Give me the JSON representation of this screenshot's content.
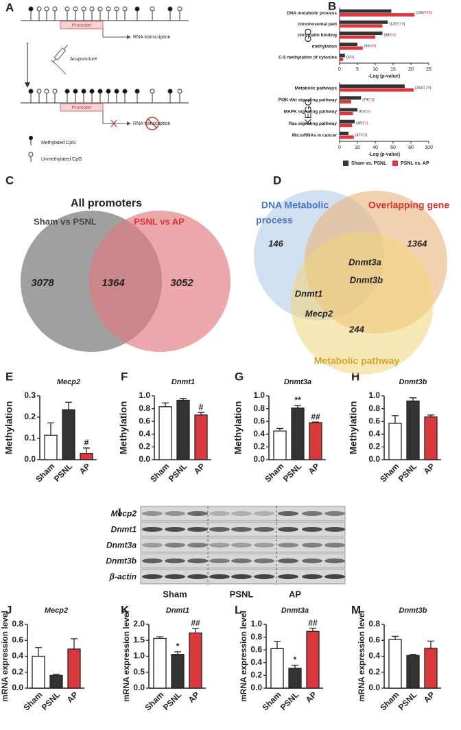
{
  "panel_letters": [
    "A",
    "B",
    "C",
    "D",
    "E",
    "F",
    "G",
    "H",
    "I",
    "J",
    "K",
    "L",
    "M"
  ],
  "diagram_a": {
    "promoter_top": "Promoter",
    "rna_top": "RNA transcription",
    "acupuncture": "Acupuncture",
    "promoter_bottom": "Promoter",
    "rna_bottom": "RNA transcription",
    "legend_methylated": "Methylated CpG",
    "legend_unmethylated": "Unmethylated CpG"
  },
  "venn_c": {
    "title": "All promoters",
    "sets": [
      "Sham vs PSNL",
      "PSNL vs AP"
    ],
    "counts": [
      3078,
      1364,
      3052
    ]
  },
  "venn_d": {
    "sets": [
      [
        "DNA Metabolic",
        "process"
      ],
      "Overlapping gene",
      "Metabolic pathway"
    ],
    "counts": [
      146,
      1364,
      244
    ],
    "genes": [
      "Dnmt3a",
      "Dnmt3b",
      "Dnmt1",
      "Mecp2"
    ]
  },
  "blot_i": {
    "rows": [
      "Mecp2",
      "Dnmt1",
      "Dnmt3a",
      "Dnmt3b",
      "β-actin"
    ],
    "groups": [
      "Sham",
      "PSNL",
      "AP"
    ]
  },
  "chart_data": [
    {
      "type": "hbar",
      "axis_label": "GO",
      "x_label": "-Log (p-value)",
      "categories": [
        "DNA metabolic process",
        "chromosomal part",
        "chromatin binding",
        "methylation",
        "C-5 methylation of cytosine"
      ],
      "series": [
        {
          "name": "Sham vs. PSNL",
          "color": "#333333",
          "values": [
            14.5,
            13.5,
            12,
            5,
            1.5
          ]
        },
        {
          "name": "PSNL vs. AP",
          "color": "#d9393d",
          "values": [
            21,
            12,
            10,
            6.5,
            1
          ]
        }
      ],
      "count_labels": [
        "(128/146)",
        "(126/119)",
        "(88/83)",
        "(46/49)",
        "(3/3)"
      ],
      "xlim": [
        0,
        25
      ],
      "xticks": [
        0,
        5,
        10,
        15,
        20,
        25
      ],
      "legend": false
    },
    {
      "type": "hbar",
      "axis_label": "KEGG",
      "x_label": "-Log (p-value)",
      "categories": [
        "Metabolic pathways",
        "PI3K-Akt signaling pathway",
        "MAPK signaling pathway",
        "Ras signaling pathway",
        "MicroRNAs in cancer"
      ],
      "series": [
        {
          "name": "Sham vs. PSNL",
          "color": "#333333",
          "values": [
            73,
            24,
            20,
            17,
            10
          ]
        },
        {
          "name": "PSNL vs. AP",
          "color": "#d9393d",
          "values": [
            83,
            13,
            15,
            14,
            16
          ]
        }
      ],
      "count_labels": [
        "(244/229)",
        "(74/71)",
        "(61/55)",
        "(46/51)",
        "(47/53)"
      ],
      "xlim": [
        0,
        100
      ],
      "xticks": [
        0,
        20,
        40,
        60,
        80,
        100
      ],
      "legend": true
    },
    {
      "type": "bar",
      "title": "Mecp2",
      "y_label": "Methylation",
      "categories": [
        "Sham",
        "PSNL",
        "AP"
      ],
      "values": [
        0.115,
        0.235,
        0.03
      ],
      "errors": [
        0.058,
        0.035,
        0.025
      ],
      "colors": [
        "#ffffff",
        "#333333",
        "#d9393d"
      ],
      "ylim": [
        0,
        0.3
      ],
      "yticks": [
        {
          "value": 0,
          "label": "0.0"
        },
        0.1,
        0.2,
        0.3
      ],
      "annotations": [
        null,
        null,
        "#"
      ]
    },
    {
      "type": "bar",
      "title": "Dnmt1",
      "y_label": "Methylation",
      "categories": [
        "Sham",
        "PSNL",
        "AP"
      ],
      "values": [
        0.83,
        0.93,
        0.7
      ],
      "errors": [
        0.06,
        0.03,
        0.04
      ],
      "colors": [
        "#ffffff",
        "#333333",
        "#d9393d"
      ],
      "ylim": [
        0,
        1
      ],
      "yticks": [
        {
          "value": 0,
          "label": "0.0"
        },
        0.2,
        0.4,
        0.6,
        0.8,
        {
          "value": 1,
          "label": "1.0"
        }
      ],
      "annotations": [
        null,
        null,
        "#"
      ]
    },
    {
      "type": "bar",
      "title": "Dnmt3a",
      "y_label": "Methylation",
      "categories": [
        "Sham",
        "PSNL",
        "AP"
      ],
      "values": [
        0.45,
        0.81,
        0.58
      ],
      "errors": [
        0.04,
        0.04,
        0.01
      ],
      "colors": [
        "#ffffff",
        "#333333",
        "#d9393d"
      ],
      "ylim": [
        0,
        1
      ],
      "yticks": [
        {
          "value": 0,
          "label": "0.0"
        },
        0.2,
        0.4,
        0.6,
        0.8,
        {
          "value": 1,
          "label": "1.0"
        }
      ],
      "annotations": [
        null,
        "**",
        "##"
      ]
    },
    {
      "type": "bar",
      "title": "Dnmt3b",
      "y_label": "Methylation",
      "categories": [
        "Sham",
        "PSNL",
        "AP"
      ],
      "values": [
        0.57,
        0.92,
        0.67
      ],
      "errors": [
        0.12,
        0.05,
        0.03
      ],
      "colors": [
        "#ffffff",
        "#333333",
        "#d9393d"
      ],
      "ylim": [
        0,
        1
      ],
      "yticks": [
        {
          "value": 0,
          "label": "0.0"
        },
        0.2,
        0.4,
        0.6,
        0.8,
        {
          "value": 1,
          "label": "1.0"
        }
      ],
      "annotations": [
        null,
        null,
        null
      ]
    },
    {
      "type": "bar",
      "title": "Mecp2",
      "y_label": "mRNA expression level",
      "categories": [
        "Sham",
        "PSNL",
        "AP"
      ],
      "values": [
        0.4,
        0.16,
        0.49
      ],
      "errors": [
        0.11,
        0.015,
        0.13
      ],
      "colors": [
        "#ffffff",
        "#333333",
        "#d9393d"
      ],
      "ylim": [
        0,
        0.8
      ],
      "yticks": [
        {
          "value": 0,
          "label": "0.0"
        },
        0.2,
        0.4,
        0.6,
        0.8
      ],
      "annotations": [
        null,
        null,
        null
      ]
    },
    {
      "type": "bar",
      "title": "Dnmt1",
      "y_label": "mRNA expression level",
      "categories": [
        "Sham",
        "PSNL",
        "AP"
      ],
      "values": [
        1.56,
        1.06,
        1.73
      ],
      "errors": [
        0.05,
        0.08,
        0.14
      ],
      "colors": [
        "#ffffff",
        "#333333",
        "#d9393d"
      ],
      "ylim": [
        0,
        2
      ],
      "yticks": [
        {
          "value": 0,
          "label": "0.0"
        },
        0.5,
        {
          "value": 1,
          "label": "1.0"
        },
        1.5,
        {
          "value": 2,
          "label": "2.0"
        }
      ],
      "annotations": [
        null,
        "*",
        "##"
      ]
    },
    {
      "type": "bar",
      "title": "Dnmt3a",
      "y_label": "mRNA expression level",
      "categories": [
        "Sham",
        "PSNL",
        "AP"
      ],
      "values": [
        0.62,
        0.31,
        0.89
      ],
      "errors": [
        0.11,
        0.05,
        0.05
      ],
      "colors": [
        "#ffffff",
        "#333333",
        "#d9393d"
      ],
      "ylim": [
        0,
        1
      ],
      "yticks": [
        {
          "value": 0,
          "label": "0.0"
        },
        0.2,
        0.4,
        0.6,
        0.8,
        {
          "value": 1,
          "label": "1.0"
        }
      ],
      "annotations": [
        null,
        "*",
        "##"
      ]
    },
    {
      "type": "bar",
      "title": "Dnmt3b",
      "y_label": "mRNA expression level",
      "categories": [
        "Sham",
        "PSNL",
        "AP"
      ],
      "values": [
        0.61,
        0.41,
        0.5
      ],
      "errors": [
        0.04,
        0.015,
        0.09
      ],
      "colors": [
        "#ffffff",
        "#333333",
        "#d9393d"
      ],
      "ylim": [
        0,
        0.8
      ],
      "yticks": [
        {
          "value": 0,
          "label": "0.0"
        },
        0.2,
        0.4,
        0.6,
        0.8
      ],
      "annotations": [
        null,
        null,
        null
      ]
    }
  ]
}
